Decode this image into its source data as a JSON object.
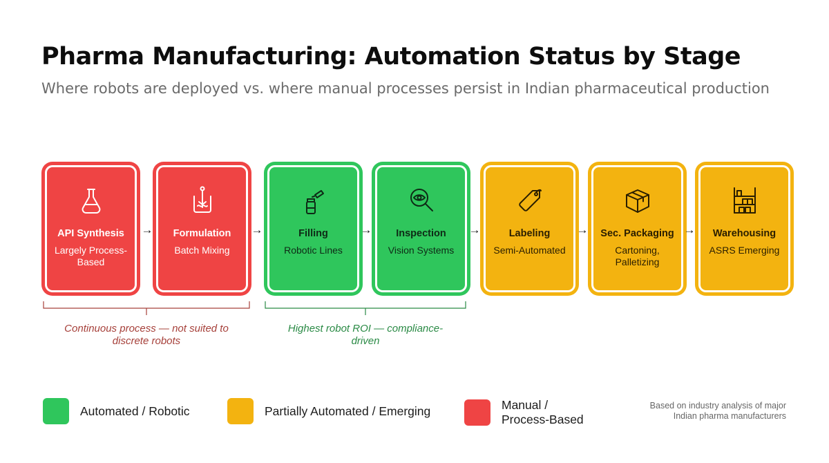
{
  "title": "Pharma Manufacturing: Automation Status by Stage",
  "subtitle": "Where robots are deployed vs. where manual processes persist in Indian pharmaceutical production",
  "stages": [
    {
      "name": "API Synthesis",
      "desc": "Largely Process-Based",
      "status": "manual",
      "icon": "flask-icon"
    },
    {
      "name": "Formulation",
      "desc": "Batch Mixing",
      "status": "manual",
      "icon": "mixing-beaker-icon"
    },
    {
      "name": "Filling",
      "desc": "Robotic Lines",
      "status": "automated",
      "icon": "vial-filling-icon"
    },
    {
      "name": "Inspection",
      "desc": "Vision Systems",
      "status": "automated",
      "icon": "eye-magnifier-icon"
    },
    {
      "name": "Labeling",
      "desc": "Semi-Automated",
      "status": "partial",
      "icon": "tag-icon"
    },
    {
      "name": "Sec. Packaging",
      "desc": "Cartoning, Palletizing",
      "status": "partial",
      "icon": "box-icon"
    },
    {
      "name": "Warehousing",
      "desc": "ASRS Emerging",
      "status": "partial",
      "icon": "shelving-icon"
    }
  ],
  "arrow_glyph": "→",
  "groups": [
    {
      "note": "Continuous process — not suited to discrete robots",
      "tone": "manual"
    },
    {
      "note": "Highest robot ROI — compliance-driven",
      "tone": "automated"
    }
  ],
  "legend": [
    {
      "label": "Automated / Robotic",
      "color": "#2fc65c"
    },
    {
      "label": "Partially Automated / Emerging",
      "color": "#f3b310"
    },
    {
      "label": "Manual / Process-Based",
      "color": "#ef4444"
    }
  ],
  "source": "Based on industry analysis of major Indian pharma manufacturers",
  "colors": {
    "manual": "#ef4444",
    "automated": "#2fc65c",
    "partial": "#f3b310",
    "manual_note": "#a6403a",
    "automated_note": "#2a8a45"
  }
}
